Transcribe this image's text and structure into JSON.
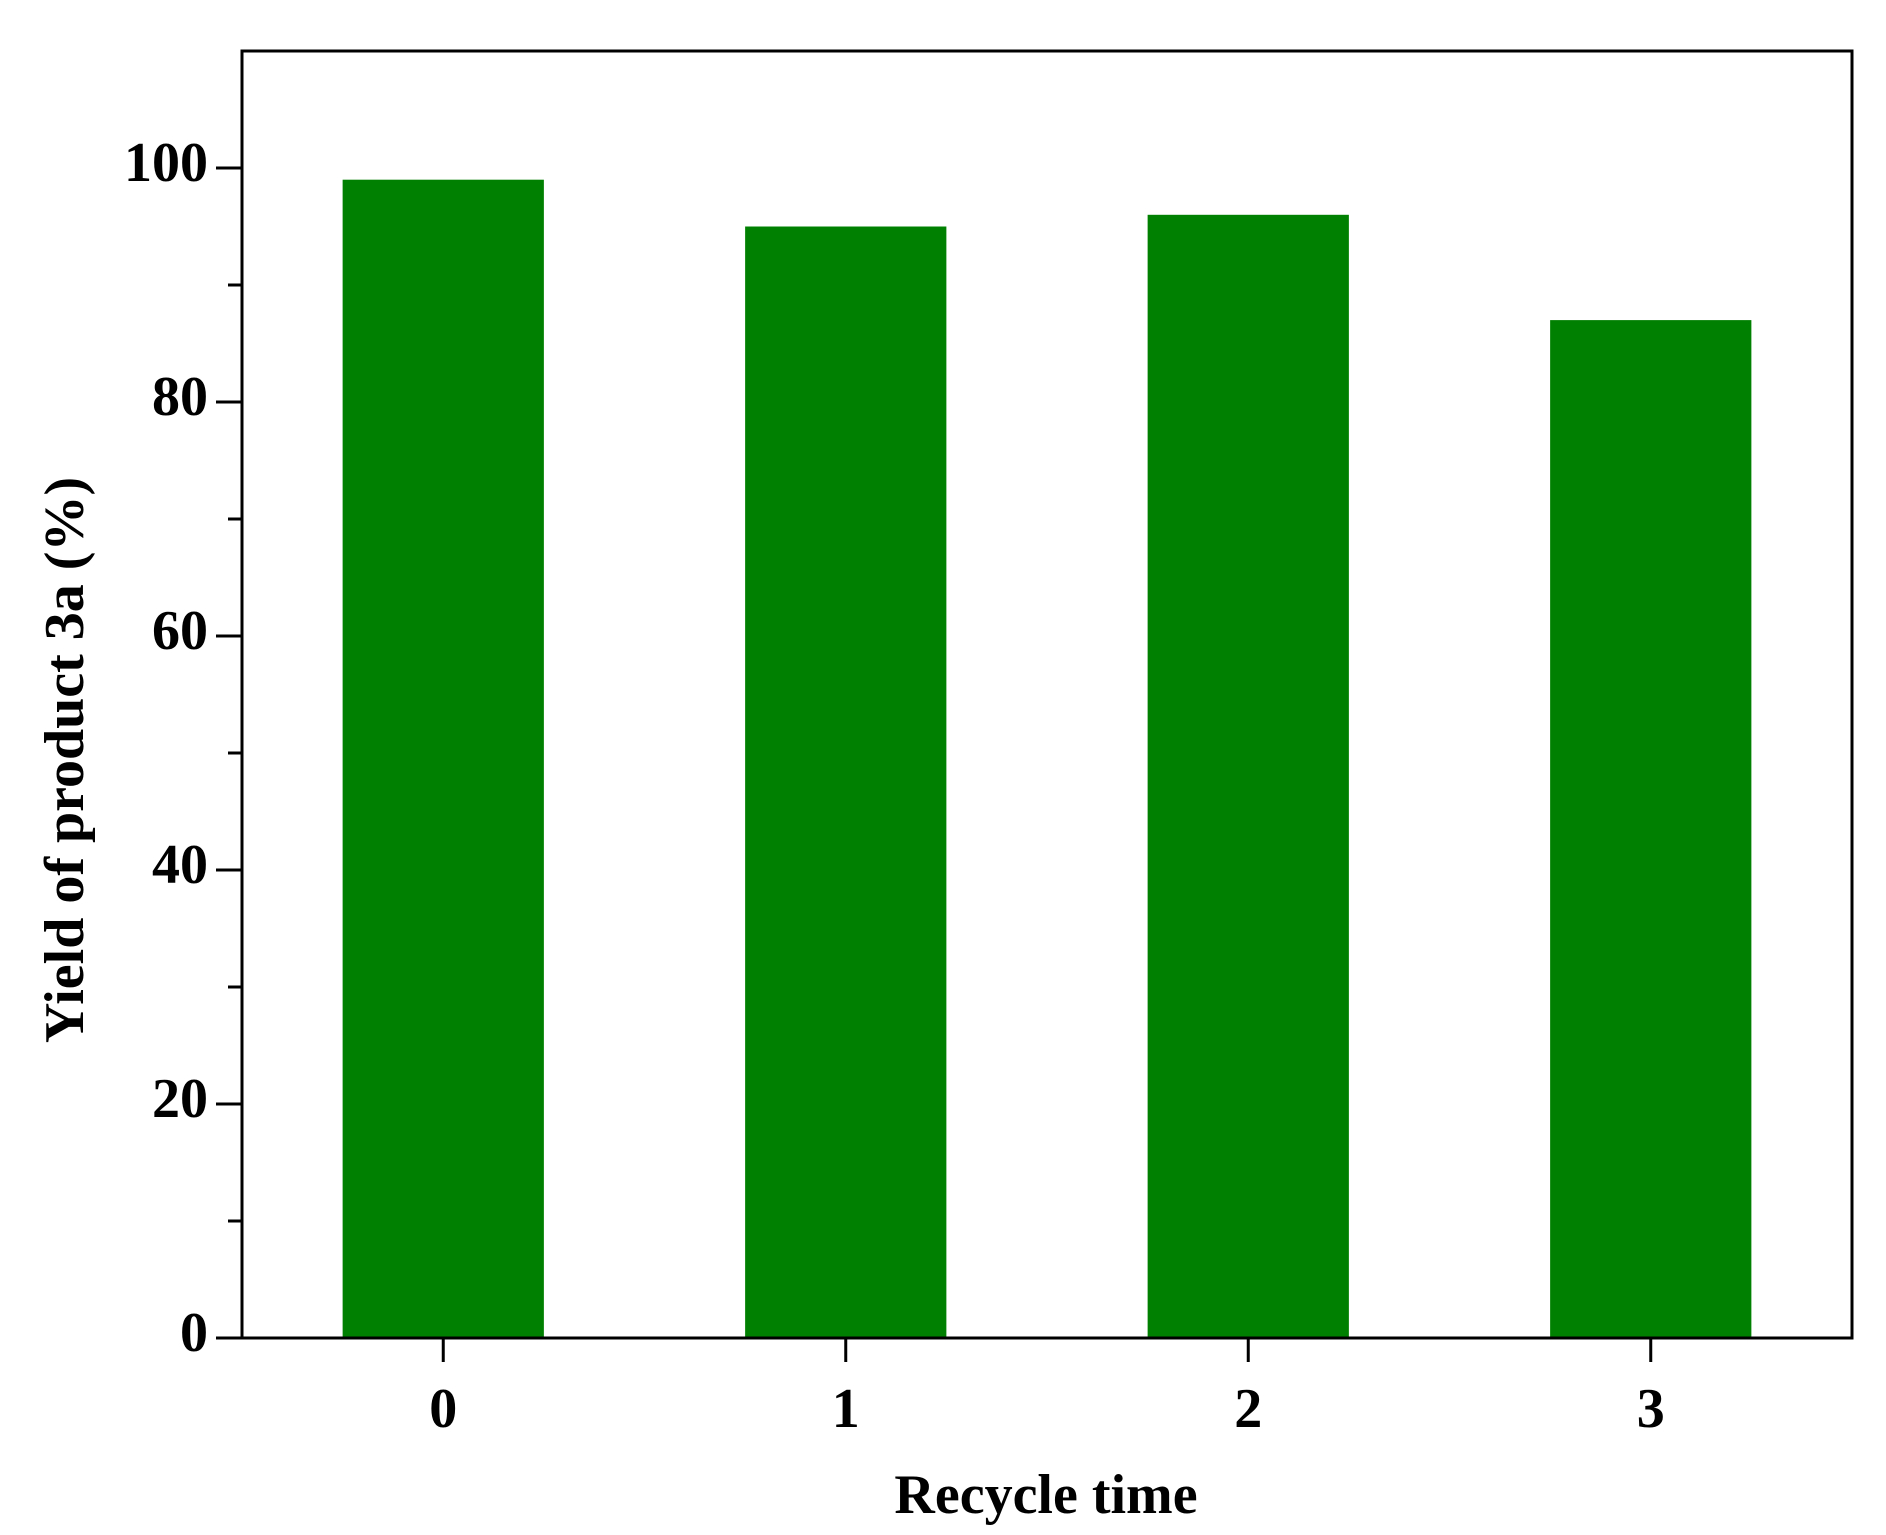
{
  "chart_data": {
    "type": "bar",
    "x_label": "Recycle time",
    "y_label": "Yield of product 3a (%)",
    "x": [
      0,
      1,
      2,
      3
    ],
    "values": [
      99,
      95,
      96,
      87
    ],
    "color": "#008000",
    "bar_width": 0.5,
    "xlim": [
      -0.5,
      3.5
    ],
    "xticks": [
      0,
      1,
      2,
      3
    ],
    "ylim": [
      0,
      110
    ],
    "yticks": [
      0,
      20,
      40,
      60,
      80,
      100
    ],
    "yminorticks": [
      10,
      30,
      50,
      70,
      90
    ],
    "grid": false
  }
}
